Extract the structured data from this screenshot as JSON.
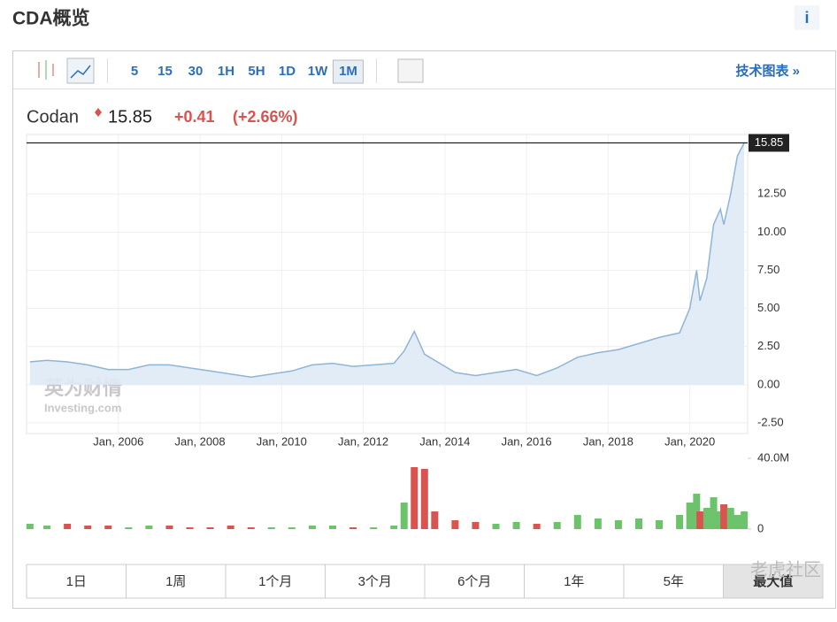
{
  "header": {
    "title": "CDA概览",
    "info": "i"
  },
  "toolbar": {
    "intervals": [
      "5",
      "15",
      "30",
      "1H",
      "5H",
      "1D",
      "1W",
      "1M"
    ],
    "active_interval": "1M",
    "link": "技术图表 »"
  },
  "quote": {
    "name": "Codan",
    "price": "15.85",
    "change": "+0.41",
    "change_pct": "(+2.66%)"
  },
  "chart_data": [
    {
      "type": "line",
      "color": "#8fb4d8",
      "area_color": "#dfeaf5",
      "x": [
        "2003-11",
        "2004-04",
        "2004-10",
        "2005-04",
        "2005-10",
        "2006-04",
        "2006-10",
        "2007-04",
        "2007-10",
        "2008-04",
        "2008-10",
        "2009-04",
        "2009-10",
        "2010-04",
        "2010-10",
        "2011-04",
        "2011-10",
        "2012-04",
        "2012-10",
        "2013-01",
        "2013-04",
        "2013-07",
        "2013-10",
        "2014-04",
        "2014-10",
        "2015-04",
        "2015-10",
        "2016-04",
        "2016-10",
        "2017-04",
        "2017-10",
        "2018-04",
        "2018-10",
        "2019-04",
        "2019-10",
        "2020-01",
        "2020-03",
        "2020-04",
        "2020-06",
        "2020-08",
        "2020-10",
        "2020-11",
        "2021-01",
        "2021-03",
        "2021-05"
      ],
      "series": [
        {
          "name": "Codan",
          "values": [
            1.5,
            1.6,
            1.5,
            1.3,
            1.0,
            1.0,
            1.3,
            1.3,
            1.1,
            0.9,
            0.7,
            0.5,
            0.7,
            0.9,
            1.3,
            1.4,
            1.2,
            1.3,
            1.4,
            2.2,
            3.5,
            2.0,
            1.6,
            0.8,
            0.6,
            0.8,
            1.0,
            0.6,
            1.1,
            1.8,
            2.1,
            2.3,
            2.7,
            3.1,
            3.4,
            5.0,
            7.5,
            5.5,
            7.0,
            10.5,
            11.5,
            10.5,
            12.5,
            15.0,
            15.85
          ]
        }
      ],
      "last_price": 15.85,
      "xlim": [
        "2003-10",
        "2021-06"
      ],
      "xticks": [
        {
          "value": "2006-01",
          "label": "Jan, 2006"
        },
        {
          "value": "2008-01",
          "label": "Jan, 2008"
        },
        {
          "value": "2010-01",
          "label": "Jan, 2010"
        },
        {
          "value": "2012-01",
          "label": "Jan, 2012"
        },
        {
          "value": "2014-01",
          "label": "Jan, 2014"
        },
        {
          "value": "2016-01",
          "label": "Jan, 2016"
        },
        {
          "value": "2018-01",
          "label": "Jan, 2018"
        },
        {
          "value": "2020-01",
          "label": "Jan, 2020"
        }
      ],
      "ylim": [
        -3.2,
        16.4
      ],
      "yticks": [
        {
          "value": -2.5,
          "label": "-2.50"
        },
        {
          "value": 0,
          "label": "0.00"
        },
        {
          "value": 2.5,
          "label": "2.50"
        },
        {
          "value": 5,
          "label": "5.00"
        },
        {
          "value": 7.5,
          "label": "7.50"
        },
        {
          "value": 10,
          "label": "10.00"
        },
        {
          "value": 12.5,
          "label": "12.50"
        }
      ],
      "grid": true,
      "watermark": [
        "英为财情",
        "Investing.com"
      ]
    },
    {
      "type": "bar",
      "x": [
        "2003-11",
        "2004-04",
        "2004-10",
        "2005-04",
        "2005-10",
        "2006-04",
        "2006-10",
        "2007-04",
        "2007-10",
        "2008-04",
        "2008-10",
        "2009-04",
        "2009-10",
        "2010-04",
        "2010-10",
        "2011-04",
        "2011-10",
        "2012-04",
        "2012-10",
        "2013-01",
        "2013-04",
        "2013-07",
        "2013-10",
        "2014-04",
        "2014-10",
        "2015-04",
        "2015-10",
        "2016-04",
        "2016-10",
        "2017-04",
        "2017-10",
        "2018-04",
        "2018-10",
        "2019-04",
        "2019-10",
        "2020-01",
        "2020-03",
        "2020-04",
        "2020-06",
        "2020-08",
        "2020-10",
        "2020-11",
        "2021-01",
        "2021-03",
        "2021-05"
      ],
      "values": [
        3,
        2,
        3,
        2,
        2,
        1,
        2,
        2,
        1,
        1,
        2,
        1,
        1,
        1,
        2,
        2,
        1,
        1,
        2,
        15,
        35,
        34,
        10,
        5,
        4,
        3,
        4,
        3,
        4,
        8,
        6,
        5,
        6,
        5,
        8,
        15,
        20,
        10,
        12,
        18,
        10,
        14,
        12,
        8,
        10
      ],
      "colors": [
        "#6cc36c",
        "#6cc36c",
        "#d9534f",
        "#d9534f",
        "#d9534f",
        "#6cc36c",
        "#6cc36c",
        "#d9534f",
        "#d9534f",
        "#d9534f",
        "#d9534f",
        "#d9534f",
        "#6cc36c",
        "#6cc36c",
        "#6cc36c",
        "#6cc36c",
        "#d9534f",
        "#6cc36c",
        "#6cc36c",
        "#6cc36c",
        "#d9534f",
        "#d9534f",
        "#d9534f",
        "#d9534f",
        "#d9534f",
        "#6cc36c",
        "#6cc36c",
        "#d9534f",
        "#6cc36c",
        "#6cc36c",
        "#6cc36c",
        "#6cc36c",
        "#6cc36c",
        "#6cc36c",
        "#6cc36c",
        "#6cc36c",
        "#6cc36c",
        "#d9534f",
        "#6cc36c",
        "#6cc36c",
        "#6cc36c",
        "#d9534f",
        "#6cc36c",
        "#6cc36c",
        "#6cc36c"
      ],
      "ylim": [
        0,
        40
      ],
      "yticks": [
        0,
        {
          "value": 40,
          "label": "40.0M"
        }
      ]
    }
  ],
  "range_tabs": [
    "1日",
    "1周",
    "1个月",
    "3个月",
    "6个月",
    "1年",
    "5年",
    "最大值"
  ],
  "active_range": "最大值",
  "corner_watermark": "老虎社区"
}
